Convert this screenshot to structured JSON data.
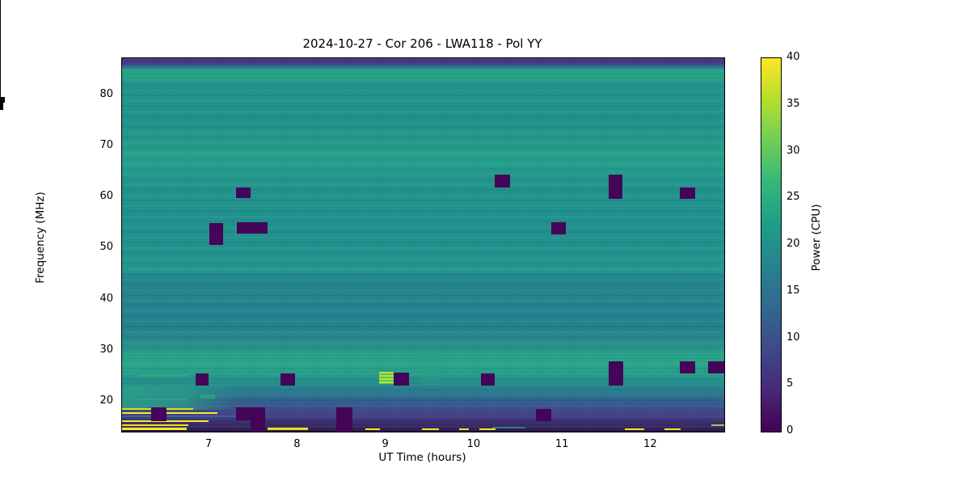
{
  "chart_data": {
    "type": "heatmap",
    "title": "2024-10-27 - Cor 206 - LWA118 - Pol YY",
    "xlabel": "UT Time (hours)",
    "ylabel": "Frequency (MHz)",
    "x_range": [
      6.01,
      12.83
    ],
    "y_range": [
      14.2,
      87.2
    ],
    "x_major_ticks": [
      7,
      8,
      9,
      10,
      11,
      12
    ],
    "x_major_tick_labels": [
      "7",
      "8",
      "9",
      "10",
      "11",
      "12"
    ],
    "x_minor_tick_step": 0.2,
    "y_major_ticks": [
      20,
      30,
      40,
      50,
      60,
      70,
      80
    ],
    "y_major_tick_labels": [
      "20",
      "30",
      "40",
      "50",
      "60",
      "70",
      "80"
    ],
    "grid": false,
    "colormap": "viridis",
    "colorbar": {
      "label": "Power (CPU)",
      "min": 0,
      "max": 40,
      "ticks": [
        0,
        5,
        10,
        15,
        20,
        25,
        30,
        35,
        40
      ],
      "tick_labels": [
        "0",
        "5",
        "10",
        "15",
        "20",
        "25",
        "30",
        "35",
        "40"
      ]
    },
    "background_profile": [
      [
        87.2,
        "#453781"
      ],
      [
        86.7,
        "#44337e"
      ],
      [
        86.1,
        "#3e4a89"
      ],
      [
        85.5,
        "#2f6f8e"
      ],
      [
        84.8,
        "#28a186"
      ],
      [
        83.9,
        "#27a486"
      ],
      [
        83.0,
        "#239a8b"
      ],
      [
        81.5,
        "#24908d"
      ],
      [
        79.5,
        "#22948c"
      ],
      [
        75.0,
        "#21918c"
      ],
      [
        70.8,
        "#25988b"
      ],
      [
        68.0,
        "#26a089"
      ],
      [
        64.9,
        "#239a8b"
      ],
      [
        62.0,
        "#21938c"
      ],
      [
        57.0,
        "#21918d"
      ],
      [
        51.0,
        "#22908d"
      ],
      [
        46.5,
        "#23968b"
      ],
      [
        45.2,
        "#23968b"
      ],
      [
        44.9,
        "#24868e"
      ],
      [
        40.0,
        "#25838e"
      ],
      [
        35.0,
        "#26808e"
      ],
      [
        32.0,
        "#26898d"
      ],
      [
        30.0,
        "#27988a"
      ],
      [
        28.8,
        "#28a487"
      ],
      [
        26.5,
        "#28a387"
      ],
      [
        24.8,
        "#25968c"
      ],
      [
        23.4,
        "#24898d"
      ],
      [
        22.0,
        "#2a7c8e"
      ],
      [
        20.7,
        "#30688e"
      ],
      [
        19.4,
        "#3a568e"
      ],
      [
        18.2,
        "#414a8a"
      ],
      [
        17.1,
        "#433e83"
      ],
      [
        16.0,
        "#3c2f70"
      ],
      [
        14.9,
        "#32235a"
      ],
      [
        14.2,
        "#2a1a47"
      ]
    ],
    "flag_color": "#440458",
    "flagged_blocks": [
      {
        "t0": 7.3,
        "t1": 7.47,
        "f0": 59.8,
        "f1": 61.9
      },
      {
        "t0": 7.0,
        "t1": 7.15,
        "f0": 50.7,
        "f1": 55.0
      },
      {
        "t0": 7.31,
        "t1": 7.66,
        "f0": 52.9,
        "f1": 55.1
      },
      {
        "t0": 10.23,
        "t1": 10.4,
        "f0": 61.9,
        "f1": 64.4
      },
      {
        "t0": 11.52,
        "t1": 11.68,
        "f0": 59.7,
        "f1": 64.4
      },
      {
        "t0": 12.33,
        "t1": 12.5,
        "f0": 59.7,
        "f1": 61.9
      },
      {
        "t0": 10.87,
        "t1": 11.04,
        "f0": 52.8,
        "f1": 55.1
      },
      {
        "t0": 6.84,
        "t1": 6.99,
        "f0": 23.2,
        "f1": 25.5
      },
      {
        "t0": 7.8,
        "t1": 7.97,
        "f0": 23.2,
        "f1": 25.5
      },
      {
        "t0": 9.09,
        "t1": 9.26,
        "f0": 23.2,
        "f1": 25.8
      },
      {
        "t0": 10.07,
        "t1": 10.23,
        "f0": 23.2,
        "f1": 25.5
      },
      {
        "t0": 11.52,
        "t1": 11.69,
        "f0": 23.2,
        "f1": 27.9
      },
      {
        "t0": 12.33,
        "t1": 12.5,
        "f0": 25.5,
        "f1": 27.9
      },
      {
        "t0": 12.65,
        "t1": 12.83,
        "f0": 25.5,
        "f1": 27.9
      },
      {
        "t0": 10.7,
        "t1": 10.87,
        "f0": 16.3,
        "f1": 18.7
      },
      {
        "t0": 6.34,
        "t1": 6.51,
        "f0": 16.2,
        "f1": 18.9
      },
      {
        "t0": 7.3,
        "t1": 7.63,
        "f0": 16.4,
        "f1": 18.9
      },
      {
        "t0": 7.47,
        "t1": 7.63,
        "f0": 14.2,
        "f1": 16.4
      },
      {
        "t0": 8.44,
        "t1": 8.62,
        "f0": 14.2,
        "f1": 18.9
      }
    ],
    "rfi_stripes": [
      {
        "t0": 6.01,
        "t1": 6.82,
        "f0": 18.45,
        "f1": 18.8,
        "color": "#d8e219"
      },
      {
        "t0": 6.01,
        "t1": 7.09,
        "f0": 17.6,
        "f1": 18.05,
        "color": "#fde725"
      },
      {
        "t0": 6.01,
        "t1": 7.55,
        "f0": 17.05,
        "f1": 17.35,
        "color": "#31688e"
      },
      {
        "t0": 6.01,
        "t1": 6.99,
        "f0": 16.05,
        "f1": 16.45,
        "color": "#fde725"
      },
      {
        "t0": 6.01,
        "t1": 6.76,
        "f0": 15.3,
        "f1": 15.65,
        "color": "#ece51b"
      },
      {
        "t0": 6.01,
        "t1": 6.74,
        "f0": 14.55,
        "f1": 14.95,
        "color": "#fde725"
      },
      {
        "t0": 7.66,
        "t1": 8.12,
        "f0": 14.55,
        "f1": 14.95,
        "color": "#e5e419"
      },
      {
        "t0": 8.77,
        "t1": 8.93,
        "f0": 14.55,
        "f1": 14.9,
        "color": "#fde725"
      },
      {
        "t0": 9.41,
        "t1": 9.6,
        "f0": 14.55,
        "f1": 14.9,
        "color": "#f6e620"
      },
      {
        "t0": 9.83,
        "t1": 9.94,
        "f0": 14.55,
        "f1": 14.85,
        "color": "#fde725"
      },
      {
        "t0": 10.06,
        "t1": 10.24,
        "f0": 14.55,
        "f1": 14.9,
        "color": "#fde725"
      },
      {
        "t0": 10.2,
        "t1": 10.58,
        "f0": 14.9,
        "f1": 15.2,
        "color": "#2a788e"
      },
      {
        "t0": 11.7,
        "t1": 11.92,
        "f0": 14.55,
        "f1": 14.9,
        "color": "#f1e51d"
      },
      {
        "t0": 12.15,
        "t1": 12.34,
        "f0": 14.55,
        "f1": 14.9,
        "color": "#fde725"
      },
      {
        "t0": 12.68,
        "t1": 12.83,
        "f0": 15.25,
        "f1": 15.6,
        "color": "#90d743"
      },
      {
        "t0": 6.15,
        "t1": 6.75,
        "f0": 20.4,
        "f1": 20.75,
        "color": "#2f9d8a"
      },
      {
        "t0": 6.9,
        "t1": 7.06,
        "f0": 20.6,
        "f1": 21.4,
        "color": "#2f9d8a"
      },
      {
        "t0": 6.2,
        "t1": 6.75,
        "f0": 25.0,
        "f1": 25.4,
        "color": "#2fa785"
      }
    ],
    "rfi_patches": [
      {
        "type": "bright-striped",
        "t0": 8.92,
        "t1": 9.09,
        "f0": 23.5,
        "f1": 25.9,
        "colors": [
          "#c0e02e",
          "#55c667"
        ]
      },
      {
        "type": "faint-column",
        "t0": 9.4,
        "t1": 9.62,
        "f0": 23.3,
        "f1": 29.5,
        "color": "#2aa383",
        "opacity": 0.3
      },
      {
        "type": "left-shelf",
        "t0": 6.01,
        "t1": 7.31,
        "f0": 18.4,
        "f1": 23.2,
        "color": "#29a086",
        "opacity": 0.75
      }
    ]
  },
  "colors": {
    "viridis_stops": [
      "#440154",
      "#482878",
      "#3e4989",
      "#31688e",
      "#26828e",
      "#1f9e89",
      "#35b779",
      "#6ece58",
      "#b5de2b",
      "#fde725"
    ],
    "axis": "#000000",
    "page_background": "#ffffff"
  }
}
